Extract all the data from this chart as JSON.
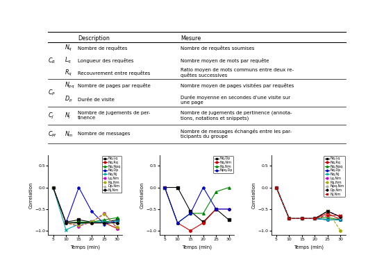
{
  "plots": {
    "xvals": [
      5,
      10,
      15,
      20,
      25,
      30
    ],
    "plot1": {
      "series": {
        "Nq,Lq": [
          0.0,
          -0.8,
          -0.75,
          -0.8,
          -0.8,
          -0.75
        ],
        "Nq,Rq": [
          0.0,
          -0.82,
          -0.82,
          -0.82,
          -0.82,
          -0.95
        ],
        "Nq,Npq": [
          0.0,
          -0.82,
          -0.8,
          -0.8,
          -0.75,
          -0.7
        ],
        "Nq,Dp": [
          0.0,
          -0.82,
          0.0,
          -0.55,
          -0.85,
          -0.78
        ],
        "Nq,Nj": [
          0.0,
          -0.98,
          -0.85,
          -0.8,
          -0.8,
          -0.78
        ],
        "Lq,Nm": [
          0.0,
          -0.82,
          -0.9,
          -0.8,
          -0.6,
          -0.95
        ],
        "Rq,Nm": [
          0.0,
          -0.82,
          -0.88,
          -0.8,
          -0.62,
          -0.93
        ],
        "Dp,Nm": [
          0.0,
          -0.82,
          -0.82,
          -0.82,
          -0.82,
          -0.82
        ],
        "Nj,Nm": [
          0.0,
          -0.82,
          -0.82,
          -0.82,
          -0.82,
          -0.82
        ]
      },
      "colors": {
        "Nq,Lq": "#000000",
        "Nq,Rq": "#cc0000",
        "Nq,Npq": "#008800",
        "Nq,Dp": "#0000cc",
        "Nq,Nj": "#00aaaa",
        "Lq,Nm": "#cc00cc",
        "Rq,Nm": "#aaaa00",
        "Dp,Nm": "#aaaaaa",
        "Nj,Nm": "#000000"
      },
      "markers": {
        "Nq,Lq": "s",
        "Nq,Rq": "o",
        "Nq,Npq": "^",
        "Nq,Dp": "P",
        "Nq,Nj": "x",
        "Lq,Nm": "o",
        "Rq,Nm": "o",
        "Dp,Nm": "^",
        "Nj,Nm": "P"
      },
      "linestyles": {
        "Nq,Lq": "-",
        "Nq,Rq": "-",
        "Nq,Npq": "-",
        "Nq,Dp": "-",
        "Nq,Nj": "-",
        "Lq,Nm": "--",
        "Rq,Nm": "--",
        "Dp,Nm": "--",
        "Nj,Nm": "-"
      }
    },
    "plot2": {
      "series": {
        "Nq,Dp": [
          0.0,
          0.0,
          -0.55,
          -0.8,
          -0.5,
          -0.75
        ],
        "Nq,Nm": [
          0.0,
          -0.82,
          -1.0,
          -0.82,
          -0.5,
          -0.5
        ],
        "Rq,Nm": [
          0.0,
          -0.82,
          -0.6,
          -0.6,
          -0.1,
          0.0
        ],
        "Npq,Dp": [
          0.0,
          -0.82,
          -0.6,
          0.0,
          -0.5,
          -0.5
        ]
      },
      "colors": {
        "Nq,Dp": "#000000",
        "Nq,Nm": "#cc0000",
        "Rq,Nm": "#008800",
        "Npq,Dp": "#0000cc"
      },
      "markers": {
        "Nq,Dp": "s",
        "Nq,Nm": "o",
        "Rq,Nm": "^",
        "Npq,Dp": "P"
      },
      "linestyles": {
        "Nq,Dp": "-",
        "Nq,Nm": "-",
        "Rq,Nm": "-",
        "Npq,Dp": "-"
      }
    },
    "plot3": {
      "series": {
        "Nq,Lq": [
          0.0,
          -0.72,
          -0.72,
          -0.72,
          -0.55,
          -0.68
        ],
        "Nq,Rq": [
          0.0,
          -0.72,
          -0.72,
          -0.72,
          -0.6,
          -0.75
        ],
        "Nq,Npq": [
          0.0,
          -0.72,
          -0.72,
          -0.72,
          -0.7,
          -0.75
        ],
        "Nq,Dp": [
          0.0,
          -0.72,
          -0.72,
          -0.72,
          -0.75,
          -0.75
        ],
        "Nq,Nj": [
          0.0,
          -0.72,
          -0.72,
          -0.72,
          -0.75,
          -0.75
        ],
        "Lq,Nm": [
          0.0,
          -0.72,
          -0.72,
          -0.72,
          -0.55,
          -0.68
        ],
        "Rq,Nm": [
          0.0,
          -0.72,
          -0.72,
          -0.72,
          -0.55,
          -1.0
        ],
        "Npq,Nm": [
          0.0,
          -0.72,
          -0.72,
          -0.72,
          -0.65,
          -0.7
        ],
        "Dp,Nm": [
          0.0,
          -0.72,
          -0.72,
          -0.72,
          -0.55,
          -0.68
        ],
        "Nj,Nm": [
          0.0,
          -0.72,
          -0.72,
          -0.72,
          -0.65,
          -0.65
        ]
      },
      "colors": {
        "Nq,Lq": "#000000",
        "Nq,Rq": "#cc0000",
        "Nq,Npq": "#008800",
        "Nq,Dp": "#0000cc",
        "Nq,Nj": "#00aaaa",
        "Lq,Nm": "#cc00cc",
        "Rq,Nm": "#aaaa00",
        "Npq,Nm": "#aaaaaa",
        "Dp,Nm": "#000000",
        "Nj,Nm": "#cc0000"
      },
      "markers": {
        "Nq,Lq": "s",
        "Nq,Rq": "o",
        "Nq,Npq": "^",
        "Nq,Dp": "P",
        "Nq,Nj": "x",
        "Lq,Nm": "o",
        "Rq,Nm": "o",
        "Npq,Nm": "o",
        "Dp,Nm": "P",
        "Nj,Nm": "x"
      },
      "linestyles": {
        "Nq,Lq": "-",
        "Nq,Rq": "-",
        "Nq,Npq": "-",
        "Nq,Dp": "-",
        "Nq,Nj": "-",
        "Lq,Nm": "--",
        "Rq,Nm": "--",
        "Npq,Nm": "--",
        "Dp,Nm": "--",
        "Nj,Nm": "--"
      }
    }
  },
  "table_rows": [
    {
      "group": "$C_R$",
      "items": [
        [
          "$N_q$",
          "Nombre de requêtes",
          "Nombre de requêtes soumises"
        ],
        [
          "$L_q$",
          "Longueur des requêtes",
          "Nombre moyen de mots par requête"
        ],
        [
          "$R_q$",
          "Recouvrement entre requêtes",
          "Ratio moyen de mots communs entre deux re-\nquêtes successives"
        ]
      ],
      "nlines": 4
    },
    {
      "group": "$C_P$",
      "items": [
        [
          "$N_{pq}$",
          "Nombre de pages par requête",
          "Nombre moyen de pages visitées par requêtes"
        ],
        [
          "$D_p$",
          "Durée de visite",
          "Durée moyenne en secondes d’une visite sur\nune page"
        ]
      ],
      "nlines": 3
    },
    {
      "group": "$C_J$",
      "items": [
        [
          "$N_j$",
          "Nombre de jugements de per-\ntinence",
          "Nombre de jugements de pertinence (annota-\ntions, notations et snippets)"
        ]
      ],
      "nlines": 2
    },
    {
      "group": "$C_M$",
      "items": [
        [
          "$N_m$",
          "Nombre de messages",
          "Nombre de messages échangés entre les par-\nticipants du groupe"
        ]
      ],
      "nlines": 2
    }
  ]
}
